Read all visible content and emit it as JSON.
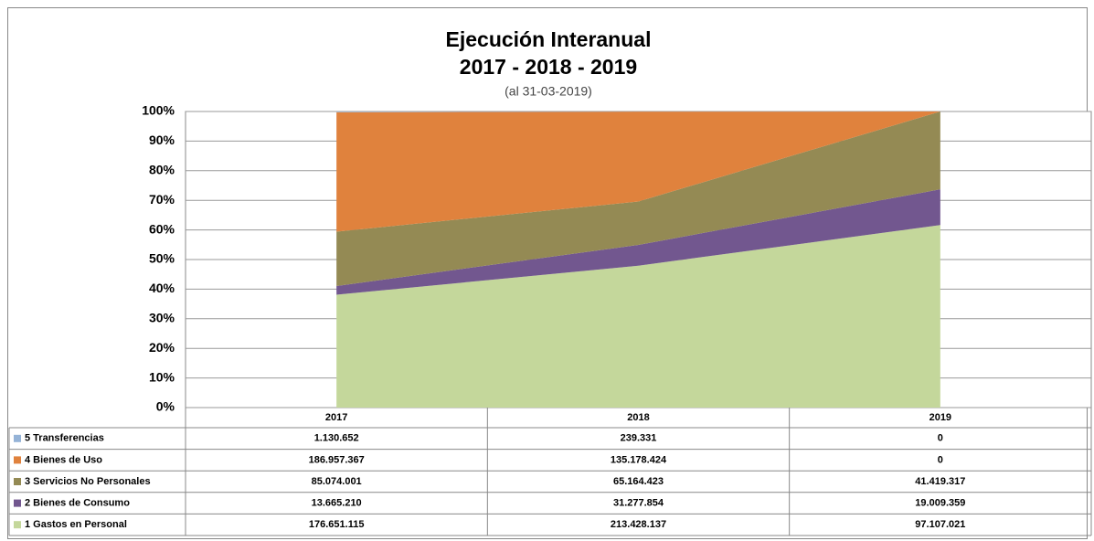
{
  "chart_data": {
    "type": "area",
    "stacking": "percent",
    "title": "Ejecución Interanual",
    "subtitle": "2017 - 2018 - 2019",
    "note": "(al 31-03-2019)",
    "categories": [
      "2017",
      "2018",
      "2019"
    ],
    "ylim": [
      0,
      100
    ],
    "yticks": [
      {
        "value": 0,
        "label": "0%"
      },
      {
        "value": 10,
        "label": "10%"
      },
      {
        "value": 20,
        "label": "20%"
      },
      {
        "value": 30,
        "label": "30%"
      },
      {
        "value": 40,
        "label": "40%"
      },
      {
        "value": 50,
        "label": "50%"
      },
      {
        "value": 60,
        "label": "60%"
      },
      {
        "value": 70,
        "label": "70%"
      },
      {
        "value": 80,
        "label": "80%"
      },
      {
        "value": 90,
        "label": "90%"
      },
      {
        "value": 100,
        "label": "100%"
      }
    ],
    "grid": true,
    "series": [
      {
        "name": "1 Gastos en Personal",
        "color": "#c4d79b",
        "values": [
          176651115,
          213428137,
          97107021
        ],
        "value_labels": [
          "176.651.115",
          "213.428.137",
          "97.107.021"
        ]
      },
      {
        "name": "2 Bienes de Consumo",
        "color": "#72578f",
        "values": [
          13665210,
          31277854,
          19009359
        ],
        "value_labels": [
          "13.665.210",
          "31.277.854",
          "19.009.359"
        ]
      },
      {
        "name": "3 Servicios No Personales",
        "color": "#948a54",
        "values": [
          85074001,
          65164423,
          41419317
        ],
        "value_labels": [
          "85.074.001",
          "65.164.423",
          "41.419.317"
        ]
      },
      {
        "name": "4 Bienes de Uso",
        "color": "#e0823d",
        "values": [
          186957367,
          135178424,
          0
        ],
        "value_labels": [
          "186.957.367",
          "135.178.424",
          "0"
        ]
      },
      {
        "name": "5 Transferencias",
        "color": "#95b3d7",
        "values": [
          1130652,
          239331,
          0
        ],
        "value_labels": [
          "1.130.652",
          "239.331",
          "0"
        ]
      }
    ]
  }
}
